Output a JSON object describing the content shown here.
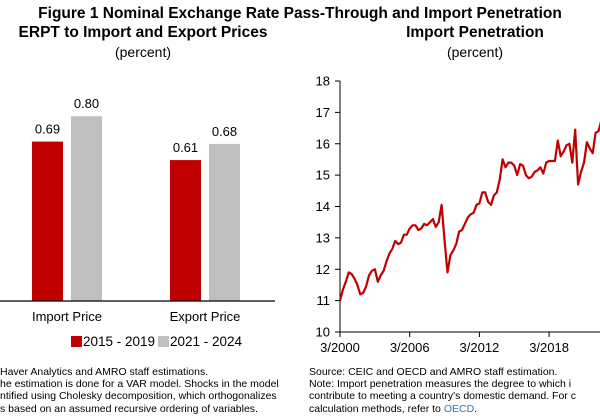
{
  "figure": {
    "title": "Figure 1 Nominal Exchange Rate Pass-Through and Import Penetration"
  },
  "colors": {
    "series1": "#c00000",
    "series2": "#bfbfbf",
    "axis": "#000000",
    "link": "#2e75b6"
  },
  "left_panel": {
    "title": "ERPT to Import and Export Prices",
    "unit": "(percent)",
    "legend": [
      {
        "label": "2015 - 2019",
        "color": "#c00000"
      },
      {
        "label": "2021 - 2024",
        "color": "#bfbfbf"
      }
    ],
    "notes": [
      "Haver Analytics and AMRO staff estimations.",
      "he estimation is done for a VAR model. Shocks in the model",
      "ntified using Cholesky decomposition, which orthogonalizes",
      "s based on an assumed recursive ordering of variables."
    ]
  },
  "right_panel": {
    "title": "Import Penetration",
    "unit": "(percent)",
    "notes": {
      "source": "Source: CEIC and OECD and AMRO staff estimation.",
      "note_line1": "Note: Import penetration measures the degree to which i",
      "note_line2": "contribute to meeting a country's domestic demand. For c",
      "note_line3_prefix": "calculation methods, refer to ",
      "note_link": "OECD",
      "note_line3_suffix": "."
    }
  },
  "chart_data": [
    {
      "type": "bar",
      "title": "ERPT to Import and Export Prices",
      "subtitle": "(percent)",
      "categories": [
        "Import Price",
        "Export Price"
      ],
      "series": [
        {
          "name": "2015 - 2019",
          "values": [
            0.69,
            0.61
          ],
          "color": "#c00000"
        },
        {
          "name": "2021 - 2024",
          "values": [
            0.8,
            0.68
          ],
          "color": "#bfbfbf"
        }
      ],
      "data_labels": [
        [
          "0.69",
          "0.80"
        ],
        [
          "0.61",
          "0.68"
        ]
      ],
      "xlabel": "",
      "ylabel": "",
      "ylim": [
        0,
        1.0
      ],
      "grid": false,
      "legend": "bottom"
    },
    {
      "type": "line",
      "title": "Import Penetration",
      "subtitle": "(percent)",
      "xlabel": "",
      "ylabel": "",
      "ylim": [
        10,
        18
      ],
      "yticks": [
        10,
        11,
        12,
        13,
        14,
        15,
        16,
        17,
        18
      ],
      "xticks": [
        "3/2000",
        "3/2006",
        "3/2012",
        "3/2018"
      ],
      "xtick_quarter_index": [
        0,
        24,
        48,
        72
      ],
      "x_start": "2000Q1",
      "frequency": "quarterly",
      "grid": false,
      "series": [
        {
          "name": "Import penetration",
          "color": "#c00000",
          "points": [
            [
              0,
              11.0
            ],
            [
              1,
              11.35
            ],
            [
              2,
              11.6
            ],
            [
              3,
              11.9
            ],
            [
              4,
              11.85
            ],
            [
              5,
              11.7
            ],
            [
              6,
              11.5
            ],
            [
              7,
              11.2
            ],
            [
              8,
              11.25
            ],
            [
              9,
              11.45
            ],
            [
              10,
              11.8
            ],
            [
              11,
              11.95
            ],
            [
              12,
              12.0
            ],
            [
              13,
              11.6
            ],
            [
              14,
              11.8
            ],
            [
              15,
              11.95
            ],
            [
              16,
              12.25
            ],
            [
              17,
              12.5
            ],
            [
              18,
              12.65
            ],
            [
              19,
              12.9
            ],
            [
              20,
              12.8
            ],
            [
              21,
              12.85
            ],
            [
              22,
              13.1
            ],
            [
              23,
              13.1
            ],
            [
              24,
              13.3
            ],
            [
              25,
              13.4
            ],
            [
              26,
              13.4
            ],
            [
              27,
              13.25
            ],
            [
              28,
              13.3
            ],
            [
              29,
              13.45
            ],
            [
              30,
              13.4
            ],
            [
              31,
              13.5
            ],
            [
              32,
              13.6
            ],
            [
              33,
              13.35
            ],
            [
              34,
              13.5
            ],
            [
              35,
              14.05
            ],
            [
              36,
              12.9
            ],
            [
              37,
              11.9
            ],
            [
              38,
              12.45
            ],
            [
              39,
              12.6
            ],
            [
              40,
              12.8
            ],
            [
              41,
              13.2
            ],
            [
              42,
              13.25
            ],
            [
              43,
              13.45
            ],
            [
              44,
              13.65
            ],
            [
              45,
              13.75
            ],
            [
              46,
              13.8
            ],
            [
              47,
              14.05
            ],
            [
              48,
              14.1
            ],
            [
              49,
              14.45
            ],
            [
              50,
              14.45
            ],
            [
              51,
              14.15
            ],
            [
              52,
              14.05
            ],
            [
              53,
              14.35
            ],
            [
              54,
              14.45
            ],
            [
              55,
              14.85
            ],
            [
              56,
              15.5
            ],
            [
              57,
              15.25
            ],
            [
              58,
              15.4
            ],
            [
              59,
              15.4
            ],
            [
              60,
              15.3
            ],
            [
              61,
              15.0
            ],
            [
              62,
              15.35
            ],
            [
              63,
              15.3
            ],
            [
              64,
              15.0
            ],
            [
              65,
              14.9
            ],
            [
              66,
              14.95
            ],
            [
              67,
              15.1
            ],
            [
              68,
              15.15
            ],
            [
              69,
              15.25
            ],
            [
              70,
              15.05
            ],
            [
              71,
              15.4
            ],
            [
              72,
              15.45
            ],
            [
              73,
              15.45
            ],
            [
              74,
              15.45
            ],
            [
              75,
              16.1
            ],
            [
              76,
              15.6
            ],
            [
              77,
              15.75
            ],
            [
              78,
              15.95
            ],
            [
              79,
              16.0
            ],
            [
              80,
              15.4
            ],
            [
              81,
              16.45
            ],
            [
              82,
              14.7
            ],
            [
              83,
              15.1
            ],
            [
              84,
              15.4
            ],
            [
              85,
              16.05
            ],
            [
              86,
              15.85
            ],
            [
              87,
              15.7
            ],
            [
              88,
              16.35
            ],
            [
              89,
              16.4
            ],
            [
              90,
              16.75
            ]
          ]
        }
      ]
    }
  ]
}
